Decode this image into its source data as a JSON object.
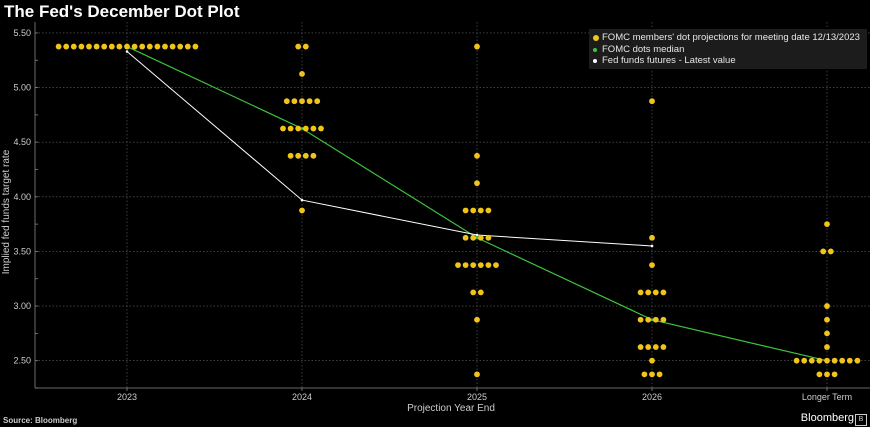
{
  "title": "The Fed's December Dot Plot",
  "source_label": "Source: Bloomberg",
  "brand": "Bloomberg",
  "brand_mark": "B",
  "colors": {
    "dots": "#f0c419",
    "median": "#3cc43c",
    "futures": "#ffffff",
    "grid": "#666666",
    "background": "#000000"
  },
  "chart_data": {
    "type": "scatter",
    "xlabel": "Projection Year End",
    "ylabel": "Implied fed funds target rate",
    "categories": [
      "2023",
      "2024",
      "2025",
      "2026",
      "Longer Term"
    ],
    "ylim": [
      2.25,
      5.6
    ],
    "yticks": [
      2.5,
      3.0,
      3.5,
      4.0,
      4.5,
      5.0,
      5.5
    ],
    "ytick_labels": [
      "2.50",
      "3.00",
      "3.50",
      "4.00",
      "4.50",
      "5.00",
      "5.50"
    ],
    "grid": true,
    "legend_position": "top-right",
    "legend": [
      "FOMC members' dot projections for meeting date 12/13/2023",
      "FOMC dots median",
      "Fed funds futures - Latest value"
    ],
    "dots": [
      {
        "category": "2023",
        "rates": [
          {
            "rate": 5.375,
            "count": 19
          }
        ]
      },
      {
        "category": "2024",
        "rates": [
          {
            "rate": 5.375,
            "count": 2
          },
          {
            "rate": 5.125,
            "count": 1
          },
          {
            "rate": 4.875,
            "count": 5
          },
          {
            "rate": 4.625,
            "count": 6
          },
          {
            "rate": 4.375,
            "count": 4
          },
          {
            "rate": 3.875,
            "count": 1
          }
        ]
      },
      {
        "category": "2025",
        "rates": [
          {
            "rate": 5.375,
            "count": 1
          },
          {
            "rate": 4.375,
            "count": 1
          },
          {
            "rate": 4.125,
            "count": 1
          },
          {
            "rate": 3.875,
            "count": 4
          },
          {
            "rate": 3.625,
            "count": 4
          },
          {
            "rate": 3.375,
            "count": 6
          },
          {
            "rate": 3.125,
            "count": 2
          },
          {
            "rate": 2.875,
            "count": 1
          },
          {
            "rate": 2.375,
            "count": 1
          }
        ]
      },
      {
        "category": "2026",
        "rates": [
          {
            "rate": 4.875,
            "count": 1
          },
          {
            "rate": 3.625,
            "count": 1
          },
          {
            "rate": 3.375,
            "count": 1
          },
          {
            "rate": 3.125,
            "count": 4
          },
          {
            "rate": 2.875,
            "count": 4
          },
          {
            "rate": 2.625,
            "count": 4
          },
          {
            "rate": 2.5,
            "count": 1
          },
          {
            "rate": 2.375,
            "count": 3
          }
        ]
      },
      {
        "category": "Longer Term",
        "rates": [
          {
            "rate": 3.75,
            "count": 1
          },
          {
            "rate": 3.5,
            "count": 2
          },
          {
            "rate": 3.0,
            "count": 1
          },
          {
            "rate": 2.875,
            "count": 1
          },
          {
            "rate": 2.75,
            "count": 1
          },
          {
            "rate": 2.625,
            "count": 1
          },
          {
            "rate": 2.5,
            "count": 9
          },
          {
            "rate": 2.375,
            "count": 3
          }
        ]
      }
    ],
    "series": [
      {
        "name": "FOMC dots median",
        "values": [
          5.375,
          4.625,
          3.625,
          2.875,
          2.5
        ]
      },
      {
        "name": "Fed funds futures - Latest value",
        "categories": [
          "2023",
          "2024",
          "2025",
          "2026"
        ],
        "values": [
          5.33,
          3.97,
          3.65,
          3.55
        ]
      }
    ]
  }
}
